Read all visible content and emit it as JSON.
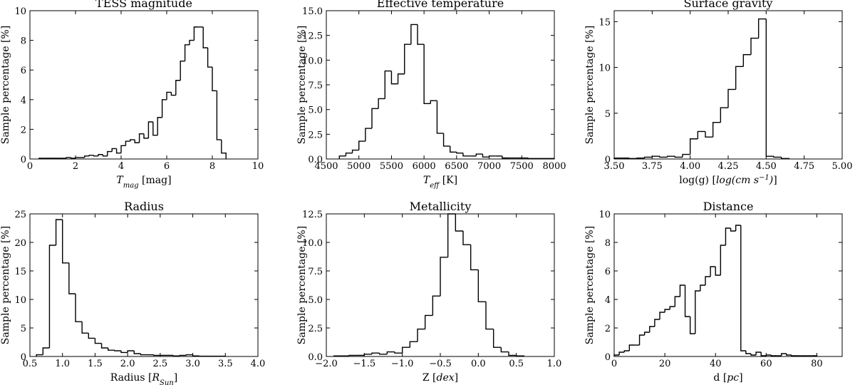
{
  "chart_data": [
    {
      "type": "histogram",
      "title": "TESS magnitude",
      "ylabel": "Sample percentage [%]",
      "xlabel": [
        {
          "text": "T",
          "style": "italic"
        },
        {
          "text": "mag",
          "style": "italic-sub"
        },
        {
          "text": " [mag]",
          "style": "normal"
        }
      ],
      "bins": [
        0.4,
        0.6,
        0.8,
        1.0,
        1.2,
        1.4,
        1.6,
        1.8,
        2.0,
        2.2,
        2.4,
        2.6,
        2.8,
        3.0,
        3.2,
        3.4,
        3.6,
        3.8,
        4.0,
        4.2,
        4.4,
        4.6,
        4.8,
        5.0,
        5.2,
        5.4,
        5.6,
        5.8,
        6.0,
        6.2,
        6.4,
        6.6,
        6.8,
        7.0,
        7.2,
        7.4,
        7.6,
        7.8,
        8.0,
        8.2,
        8.4,
        8.6
      ],
      "counts": [
        0.05,
        0.05,
        0.05,
        0.05,
        0.05,
        0.05,
        0.1,
        0.05,
        0.1,
        0.1,
        0.2,
        0.25,
        0.2,
        0.3,
        0.2,
        0.5,
        0.7,
        0.4,
        0.9,
        1.2,
        1.3,
        1.1,
        1.7,
        1.4,
        2.5,
        1.6,
        2.8,
        4.0,
        4.5,
        4.3,
        5.3,
        6.6,
        7.7,
        8.0,
        8.9,
        8.9,
        7.5,
        6.2,
        4.6,
        1.3,
        0.4
      ],
      "color": "#000000",
      "xlim": [
        0,
        10
      ],
      "xticks": [
        0,
        2,
        4,
        6,
        8,
        10
      ],
      "ylim": [
        0,
        10
      ],
      "yticks": [
        0,
        2,
        4,
        6,
        8,
        10
      ]
    },
    {
      "type": "histogram",
      "title": "Effective temperature",
      "ylabel": "Sample percentage [%]",
      "xlabel": [
        {
          "text": "T",
          "style": "italic"
        },
        {
          "text": "eff",
          "style": "italic-sub"
        },
        {
          "text": " [K]",
          "style": "normal"
        }
      ],
      "bins": [
        4700,
        4800,
        4900,
        5000,
        5100,
        5200,
        5300,
        5400,
        5500,
        5600,
        5700,
        5800,
        5900,
        6000,
        6100,
        6200,
        6300,
        6400,
        6500,
        6600,
        6700,
        6800,
        6900,
        7000,
        7100,
        7200,
        7300,
        7400,
        7500,
        7600,
        7700,
        7800,
        7900,
        8000
      ],
      "counts": [
        0.3,
        0.6,
        0.9,
        1.8,
        3.1,
        5.1,
        6.1,
        8.9,
        7.6,
        8.6,
        11.6,
        13.6,
        11.6,
        5.6,
        5.9,
        2.6,
        1.3,
        0.7,
        0.6,
        0.3,
        0.3,
        0.5,
        0.2,
        0.3,
        0.3,
        0.1,
        0.1,
        0.1,
        0.1,
        0.05,
        0.05,
        0.05,
        0.05
      ],
      "color": "#000000",
      "xlim": [
        4500,
        8000
      ],
      "xticks": [
        4500,
        5000,
        5500,
        6000,
        6500,
        7000,
        7500,
        8000
      ],
      "ylim": [
        0,
        15
      ],
      "yticks": [
        {
          "value": 0,
          "label": "0.0"
        },
        2.5,
        {
          "value": 5,
          "label": "5.0"
        },
        7.5,
        {
          "value": 10,
          "label": "10.0"
        },
        12.5,
        {
          "value": 15,
          "label": "15.0"
        }
      ]
    },
    {
      "type": "histogram",
      "title": "Surface gravity",
      "ylabel": "Sample percentage [%]",
      "xlabel": [
        {
          "text": "log(g) [",
          "style": "normal"
        },
        {
          "text": "log(cm s",
          "style": "italic"
        },
        {
          "text": "−1",
          "style": "italic-super"
        },
        {
          "text": ")",
          "style": "italic"
        },
        {
          "text": "]",
          "style": "normal"
        }
      ],
      "bins": [
        3.5,
        3.55,
        3.6,
        3.65,
        3.7,
        3.75,
        3.8,
        3.85,
        3.9,
        3.95,
        4.0,
        4.05,
        4.1,
        4.15,
        4.2,
        4.25,
        4.3,
        4.35,
        4.4,
        4.45,
        4.5,
        4.55,
        4.6,
        4.65
      ],
      "counts": [
        0.1,
        0.1,
        0.05,
        0.1,
        0.2,
        0.3,
        0.2,
        0.3,
        0.2,
        0.5,
        2.2,
        3.0,
        2.4,
        4.0,
        5.6,
        7.6,
        10.1,
        11.4,
        13.2,
        15.3,
        0.3,
        0.2,
        0.05
      ],
      "color": "#000000",
      "xlim": [
        3.5,
        5.0
      ],
      "xticks": [
        {
          "value": 3.5,
          "label": "3.50"
        },
        3.75,
        {
          "value": 4,
          "label": "4.00"
        },
        4.25,
        {
          "value": 4.5,
          "label": "4.50"
        },
        4.75,
        {
          "value": 5,
          "label": "5.00"
        }
      ],
      "ylim": [
        0,
        16.2
      ],
      "yticks": [
        0,
        5,
        10,
        15
      ]
    },
    {
      "type": "histogram",
      "title": "Radius",
      "ylabel": "Sample percentage [%]",
      "xlabel": [
        {
          "text": "Radius [",
          "style": "normal"
        },
        {
          "text": "R",
          "style": "italic"
        },
        {
          "text": "Sun",
          "style": "italic-sub"
        },
        {
          "text": "]",
          "style": "normal"
        }
      ],
      "bins": [
        0.6,
        0.7,
        0.8,
        0.9,
        1.0,
        1.1,
        1.2,
        1.3,
        1.4,
        1.5,
        1.6,
        1.7,
        1.8,
        1.9,
        2.0,
        2.1,
        2.2,
        2.3,
        2.4,
        2.5,
        2.6,
        2.7,
        2.8,
        2.9,
        3.0,
        3.1,
        3.2,
        3.3,
        3.4,
        3.5
      ],
      "counts": [
        0.3,
        1.5,
        19.5,
        24,
        16.4,
        11,
        6.1,
        4.1,
        3.2,
        2.3,
        1.5,
        1.1,
        1.0,
        0.7,
        1.0,
        0.5,
        0.3,
        0.3,
        0.2,
        0.2,
        0.2,
        0.1,
        0.2,
        0.3,
        0.1,
        0.05,
        0.05,
        0.05,
        0.05
      ],
      "color": "#000000",
      "xlim": [
        0.5,
        4.0
      ],
      "xticks": [
        0.5,
        {
          "value": 1,
          "label": "1.0"
        },
        1.5,
        {
          "value": 2,
          "label": "2.0"
        },
        2.5,
        {
          "value": 3,
          "label": "3.0"
        },
        3.5,
        {
          "value": 4,
          "label": "4.0"
        }
      ],
      "ylim": [
        0,
        25
      ],
      "yticks": [
        0,
        5,
        10,
        15,
        20,
        25
      ]
    },
    {
      "type": "histogram",
      "title": "Metallicity",
      "ylabel": "Sample percentage [%]",
      "xlabel": [
        {
          "text": "Z [",
          "style": "normal"
        },
        {
          "text": "dex",
          "style": "italic"
        },
        {
          "text": "]",
          "style": "normal"
        }
      ],
      "bins": [
        -1.9,
        -1.8,
        -1.7,
        -1.6,
        -1.5,
        -1.4,
        -1.3,
        -1.2,
        -1.1,
        -1.0,
        -0.9,
        -0.8,
        -0.7,
        -0.6,
        -0.5,
        -0.4,
        -0.3,
        -0.2,
        -0.1,
        0.0,
        0.1,
        0.2,
        0.3,
        0.4,
        0.5,
        0.6
      ],
      "counts": [
        0.05,
        0.05,
        0.1,
        0.1,
        0.2,
        0.3,
        0.2,
        0.4,
        0.3,
        0.8,
        1.3,
        2.4,
        3.6,
        5.3,
        8.7,
        12.5,
        11.0,
        9.8,
        7.6,
        4.8,
        2.4,
        0.8,
        0.4,
        0.1,
        0.05
      ],
      "color": "#000000",
      "xlim": [
        -2.0,
        1.0
      ],
      "xticks": [
        {
          "value": -2,
          "label": "−2.0"
        },
        {
          "value": -1.5,
          "label": "−1.5"
        },
        {
          "value": -1,
          "label": "−1.0"
        },
        {
          "value": -0.5,
          "label": "−0.5"
        },
        {
          "value": 0,
          "label": "0.0"
        },
        0.5,
        {
          "value": 1,
          "label": "1.0"
        }
      ],
      "ylim": [
        0,
        12.5
      ],
      "yticks": [
        {
          "value": 0,
          "label": "0.0"
        },
        2.5,
        {
          "value": 5,
          "label": "5.0"
        },
        7.5,
        {
          "value": 10,
          "label": "10.0"
        },
        12.5
      ]
    },
    {
      "type": "histogram",
      "title": "Distance",
      "ylabel": "Sample percentage [%]",
      "xlabel": [
        {
          "text": "d [",
          "style": "normal"
        },
        {
          "text": "pc",
          "style": "italic"
        },
        {
          "text": "]",
          "style": "normal"
        }
      ],
      "bins": [
        0,
        2,
        4,
        6,
        8,
        10,
        12,
        14,
        16,
        18,
        20,
        22,
        24,
        26,
        28,
        30,
        32,
        34,
        36,
        38,
        40,
        42,
        44,
        46,
        48,
        50,
        52,
        54,
        56,
        58,
        60,
        62,
        64,
        66,
        68,
        70,
        72,
        74,
        76,
        78,
        80
      ],
      "counts": [
        0.1,
        0.3,
        0.4,
        0.8,
        0.8,
        1.5,
        1.7,
        2.1,
        2.6,
        3.1,
        3.3,
        3.5,
        4.2,
        5.0,
        2.8,
        1.6,
        4.6,
        5.0,
        5.6,
        6.3,
        5.7,
        7.8,
        9.0,
        8.8,
        9.2,
        0.4,
        0.2,
        0.1,
        0.3,
        0.05,
        0.1,
        0.05,
        0.05,
        0.2,
        0.1,
        0.05,
        0.05,
        0.05,
        0.05,
        0.05
      ],
      "color": "#000000",
      "xlim": [
        0,
        90
      ],
      "xticks": [
        0,
        20,
        40,
        60,
        80
      ],
      "ylim": [
        0,
        10
      ],
      "yticks": [
        0,
        2,
        4,
        6,
        8,
        10
      ]
    }
  ]
}
